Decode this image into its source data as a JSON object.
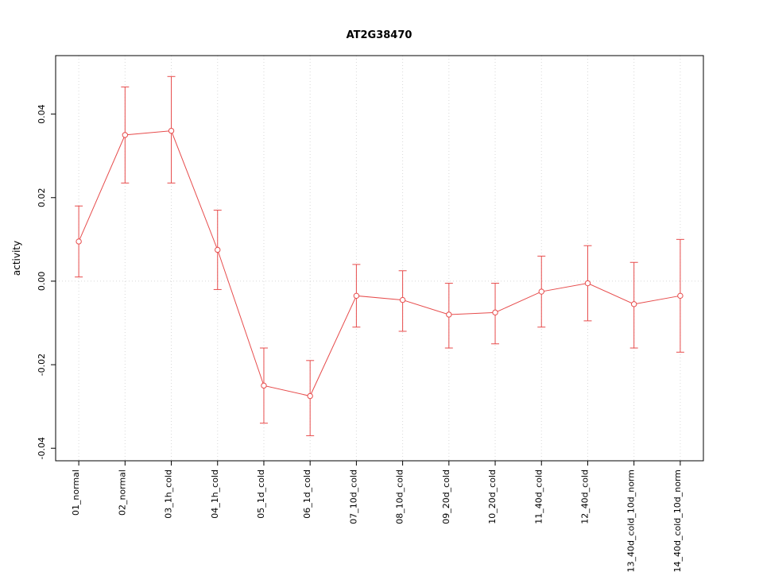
{
  "chart_data": {
    "type": "line",
    "title": "AT2G38470",
    "xlabel": "",
    "ylabel": "activity",
    "ylim": [
      -0.043,
      0.054
    ],
    "yticks": [
      -0.04,
      -0.02,
      0.0,
      0.02,
      0.04
    ],
    "grid": true,
    "legend": "none",
    "marker": "open-circle",
    "series_color": "#e74c4c",
    "grid_color": "#d8d8d8",
    "categories": [
      "01_normal",
      "02_normal",
      "03_1h_cold",
      "04_1h_cold",
      "05_1d_cold",
      "06_1d_cold",
      "07_10d_cold",
      "08_10d_cold",
      "09_20d_cold",
      "10_20d_cold",
      "11_40d_cold",
      "12_40d_cold",
      "13_40d_cold_10d_norm",
      "14_40d_cold_10d_norm"
    ],
    "values": [
      0.0095,
      0.035,
      0.036,
      0.0075,
      -0.025,
      -0.0275,
      -0.0035,
      -0.0045,
      -0.008,
      -0.0075,
      -0.0025,
      -0.0005,
      -0.0055,
      -0.0035
    ],
    "error_low": [
      0.001,
      0.0235,
      0.0235,
      -0.002,
      -0.034,
      -0.037,
      -0.011,
      -0.012,
      -0.016,
      -0.015,
      -0.011,
      -0.0095,
      -0.016,
      -0.017
    ],
    "error_high": [
      0.018,
      0.0465,
      0.049,
      0.017,
      -0.016,
      -0.019,
      0.004,
      0.0025,
      -0.0005,
      -0.0005,
      0.006,
      0.0085,
      0.0045,
      0.01
    ]
  }
}
